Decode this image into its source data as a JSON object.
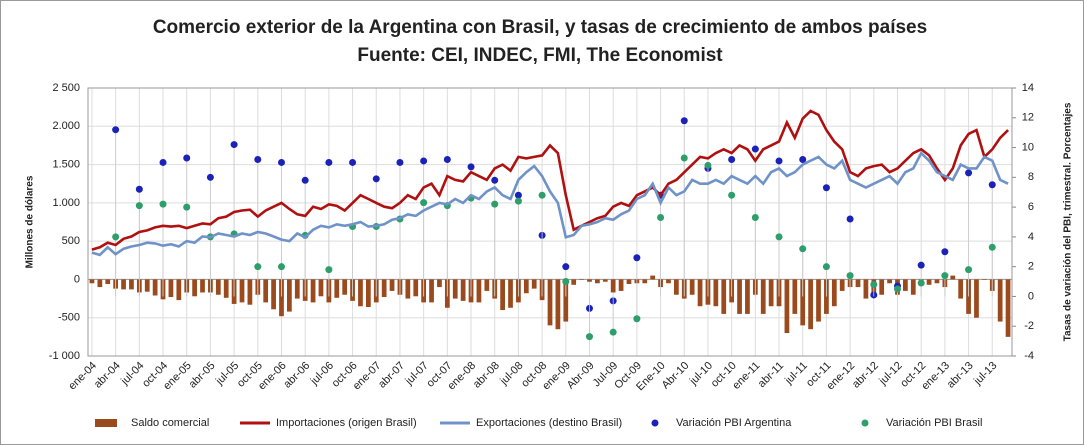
{
  "chart_data": {
    "type": "combo",
    "title": "Comercio exterior de la Argentina con Brasil, y tasas de crecimiento de ambos países",
    "subtitle": "Fuente: CEI, INDEC, FMI, The Economist",
    "ylabel": "Millones de dólares",
    "y2label": "Tasas de variación del PBI, trimestral. Porcentajes",
    "categories": [
      "ene-04",
      null,
      null,
      "abr-04",
      null,
      null,
      "jul-04",
      null,
      null,
      "oct-04",
      null,
      null,
      "ene-05",
      null,
      null,
      "abr-05",
      null,
      null,
      "jul-05",
      null,
      null,
      "oct-05",
      null,
      null,
      "ene-06",
      null,
      null,
      "abr-06",
      null,
      null,
      "jul-06",
      null,
      null,
      "oct-06",
      null,
      null,
      "ene-07",
      null,
      null,
      "abr-07",
      null,
      null,
      "jul-07",
      null,
      null,
      "oct-07",
      null,
      null,
      "ene-08",
      null,
      null,
      "abr-08",
      null,
      null,
      "jul-08",
      null,
      null,
      "oct-08",
      null,
      null,
      "ene-09",
      null,
      null,
      "Abr-09",
      null,
      null,
      "Jul-09",
      null,
      null,
      "Oct-09",
      null,
      null,
      "Ene-10",
      null,
      null,
      "Abr-10",
      null,
      null,
      "jul-10",
      null,
      null,
      "oct-10",
      null,
      null,
      "ene-11",
      null,
      null,
      "abr-11",
      null,
      null,
      "jul-11",
      null,
      null,
      "oct-11",
      null,
      null,
      "ene-12",
      null,
      null,
      "abr-12",
      null,
      null,
      "jul-12",
      null,
      null,
      "oct-12",
      null,
      null,
      "ene-13",
      null,
      null,
      "abr-13",
      null,
      null,
      "jul-13",
      null,
      null
    ],
    "ylim": [
      -1000,
      2500
    ],
    "yticks": [
      {
        "value": -1000,
        "label": "-1 000"
      },
      -500,
      0,
      500,
      {
        "value": 1000,
        "label": "1.000"
      },
      {
        "value": 1500,
        "label": "1.500"
      },
      {
        "value": 2000,
        "label": "2.000"
      },
      {
        "value": 2500,
        "label": "2 500"
      }
    ],
    "y2lim": [
      -4,
      14
    ],
    "y2ticks": [
      -4,
      -2,
      0,
      2,
      4,
      6,
      8,
      10,
      12,
      14
    ],
    "grid": true,
    "series": [
      {
        "name": "Saldo comercial",
        "type": "bar",
        "color": "#9a4a1c",
        "values": [
          -50,
          -100,
          -60,
          -120,
          -130,
          -130,
          -170,
          -160,
          -210,
          -260,
          -230,
          -270,
          -170,
          -220,
          -170,
          -170,
          -200,
          -240,
          -320,
          -300,
          -330,
          -200,
          -300,
          -390,
          -480,
          -420,
          -250,
          -280,
          -300,
          -220,
          -300,
          -240,
          -200,
          -280,
          -350,
          -360,
          -300,
          -230,
          -150,
          -200,
          -250,
          -220,
          -300,
          -300,
          -100,
          -370,
          -250,
          -280,
          -300,
          -300,
          -150,
          -250,
          -400,
          -370,
          -300,
          -180,
          -120,
          -270,
          -600,
          -650,
          -550,
          -70,
          0,
          -30,
          -50,
          -30,
          -170,
          -150,
          -60,
          -50,
          -50,
          50,
          -100,
          -50,
          -200,
          -250,
          -200,
          -350,
          -330,
          -350,
          -450,
          -300,
          -450,
          -450,
          -200,
          -450,
          -350,
          -350,
          -700,
          -450,
          -600,
          -650,
          -550,
          -450,
          -350,
          -150,
          -100,
          -100,
          -250,
          -230,
          -200,
          -50,
          -200,
          -150,
          -200,
          -50,
          -70,
          -50,
          -100,
          50,
          -250,
          -450,
          -500,
          0,
          -150,
          -550,
          -750
        ]
      },
      {
        "name": "Importaciones (origen Brasil)",
        "type": "line",
        "color": "#b01010",
        "values": [
          390,
          420,
          480,
          450,
          530,
          560,
          620,
          640,
          680,
          700,
          690,
          700,
          670,
          700,
          730,
          720,
          800,
          820,
          880,
          900,
          910,
          820,
          900,
          950,
          1000,
          920,
          850,
          830,
          950,
          920,
          980,
          960,
          900,
          1000,
          1100,
          1050,
          1000,
          950,
          930,
          1000,
          1100,
          1050,
          1200,
          1250,
          1100,
          1350,
          1300,
          1280,
          1400,
          1350,
          1300,
          1450,
          1500,
          1420,
          1600,
          1580,
          1600,
          1620,
          1750,
          1650,
          1100,
          650,
          700,
          750,
          800,
          830,
          950,
          1000,
          960,
          1100,
          1150,
          1200,
          1100,
          1250,
          1300,
          1400,
          1500,
          1600,
          1580,
          1650,
          1700,
          1650,
          1750,
          1700,
          1550,
          1700,
          1750,
          1800,
          2050,
          1850,
          2100,
          2200,
          2150,
          1950,
          1800,
          1700,
          1400,
          1350,
          1450,
          1480,
          1500,
          1400,
          1450,
          1550,
          1650,
          1700,
          1620,
          1450,
          1300,
          1450,
          1750,
          1900,
          1950,
          1600,
          1700,
          1850,
          1950
        ]
      },
      {
        "name": "Exportaciones (destino Brasil)",
        "type": "line",
        "color": "#6f93c8",
        "values": [
          350,
          320,
          420,
          330,
          400,
          430,
          450,
          480,
          470,
          440,
          460,
          430,
          500,
          480,
          560,
          550,
          600,
          580,
          560,
          600,
          580,
          620,
          600,
          560,
          520,
          500,
          600,
          550,
          650,
          700,
          680,
          720,
          700,
          720,
          750,
          690,
          700,
          720,
          780,
          800,
          850,
          830,
          900,
          950,
          1000,
          980,
          1050,
          1000,
          1100,
          1050,
          1150,
          1200,
          1100,
          1050,
          1300,
          1400,
          1480,
          1350,
          1150,
          1000,
          550,
          580,
          700,
          720,
          750,
          800,
          780,
          850,
          900,
          1050,
          1100,
          1250,
          1000,
          1200,
          1100,
          1150,
          1300,
          1250,
          1250,
          1300,
          1250,
          1350,
          1300,
          1250,
          1350,
          1250,
          1400,
          1450,
          1350,
          1400,
          1500,
          1550,
          1600,
          1500,
          1450,
          1550,
          1300,
          1250,
          1200,
          1250,
          1300,
          1350,
          1250,
          1400,
          1450,
          1650,
          1550,
          1400,
          1350,
          1300,
          1500,
          1450,
          1450,
          1600,
          1550,
          1300,
          1250
        ]
      },
      {
        "name": "Variación PBI Argentina",
        "type": "scatter",
        "axis": "y2",
        "color": "#1a22b8",
        "values": [
          null,
          null,
          null,
          11.2,
          null,
          null,
          7.2,
          null,
          null,
          9.0,
          null,
          null,
          9.3,
          null,
          null,
          8.0,
          null,
          null,
          10.2,
          null,
          null,
          9.2,
          null,
          null,
          9.0,
          null,
          null,
          7.8,
          null,
          null,
          9.0,
          null,
          null,
          9.0,
          null,
          null,
          7.9,
          null,
          null,
          9.0,
          null,
          null,
          9.1,
          null,
          null,
          9.2,
          null,
          null,
          8.7,
          null,
          null,
          7.8,
          null,
          null,
          6.8,
          null,
          null,
          4.1,
          null,
          null,
          2.0,
          null,
          null,
          -0.8,
          null,
          null,
          -0.3,
          null,
          null,
          2.6,
          null,
          null,
          6.8,
          null,
          null,
          11.8,
          null,
          null,
          8.6,
          null,
          null,
          9.2,
          null,
          null,
          9.9,
          null,
          null,
          9.1,
          null,
          null,
          9.2,
          null,
          null,
          7.3,
          null,
          null,
          5.2,
          null,
          null,
          0.1,
          null,
          null,
          0.7,
          null,
          null,
          2.1,
          null,
          null,
          3.0,
          null,
          null,
          8.3,
          null,
          null,
          7.5,
          null,
          null
        ]
      },
      {
        "name": "Variación PBI Brasil",
        "type": "scatter",
        "axis": "y2",
        "color": "#2e9e6a",
        "values": [
          null,
          null,
          null,
          4.0,
          null,
          null,
          6.1,
          null,
          null,
          6.2,
          null,
          null,
          6.0,
          null,
          null,
          4.0,
          null,
          null,
          4.2,
          null,
          null,
          2.0,
          null,
          null,
          2.0,
          null,
          null,
          4.1,
          null,
          null,
          1.8,
          null,
          null,
          4.7,
          null,
          null,
          4.7,
          null,
          null,
          5.2,
          null,
          null,
          6.3,
          null,
          null,
          6.1,
          null,
          null,
          6.6,
          null,
          null,
          6.2,
          null,
          null,
          6.4,
          null,
          null,
          6.8,
          null,
          null,
          1.0,
          null,
          null,
          -2.7,
          null,
          null,
          -2.4,
          null,
          null,
          -1.5,
          null,
          null,
          5.3,
          null,
          null,
          9.3,
          null,
          null,
          8.8,
          null,
          null,
          6.8,
          null,
          null,
          5.3,
          null,
          null,
          4.0,
          null,
          null,
          3.2,
          null,
          null,
          2.0,
          null,
          null,
          1.4,
          null,
          null,
          0.8,
          null,
          null,
          0.5,
          null,
          null,
          0.9,
          null,
          null,
          1.4,
          null,
          null,
          1.8,
          null,
          null,
          3.3,
          null,
          null
        ]
      }
    ]
  }
}
